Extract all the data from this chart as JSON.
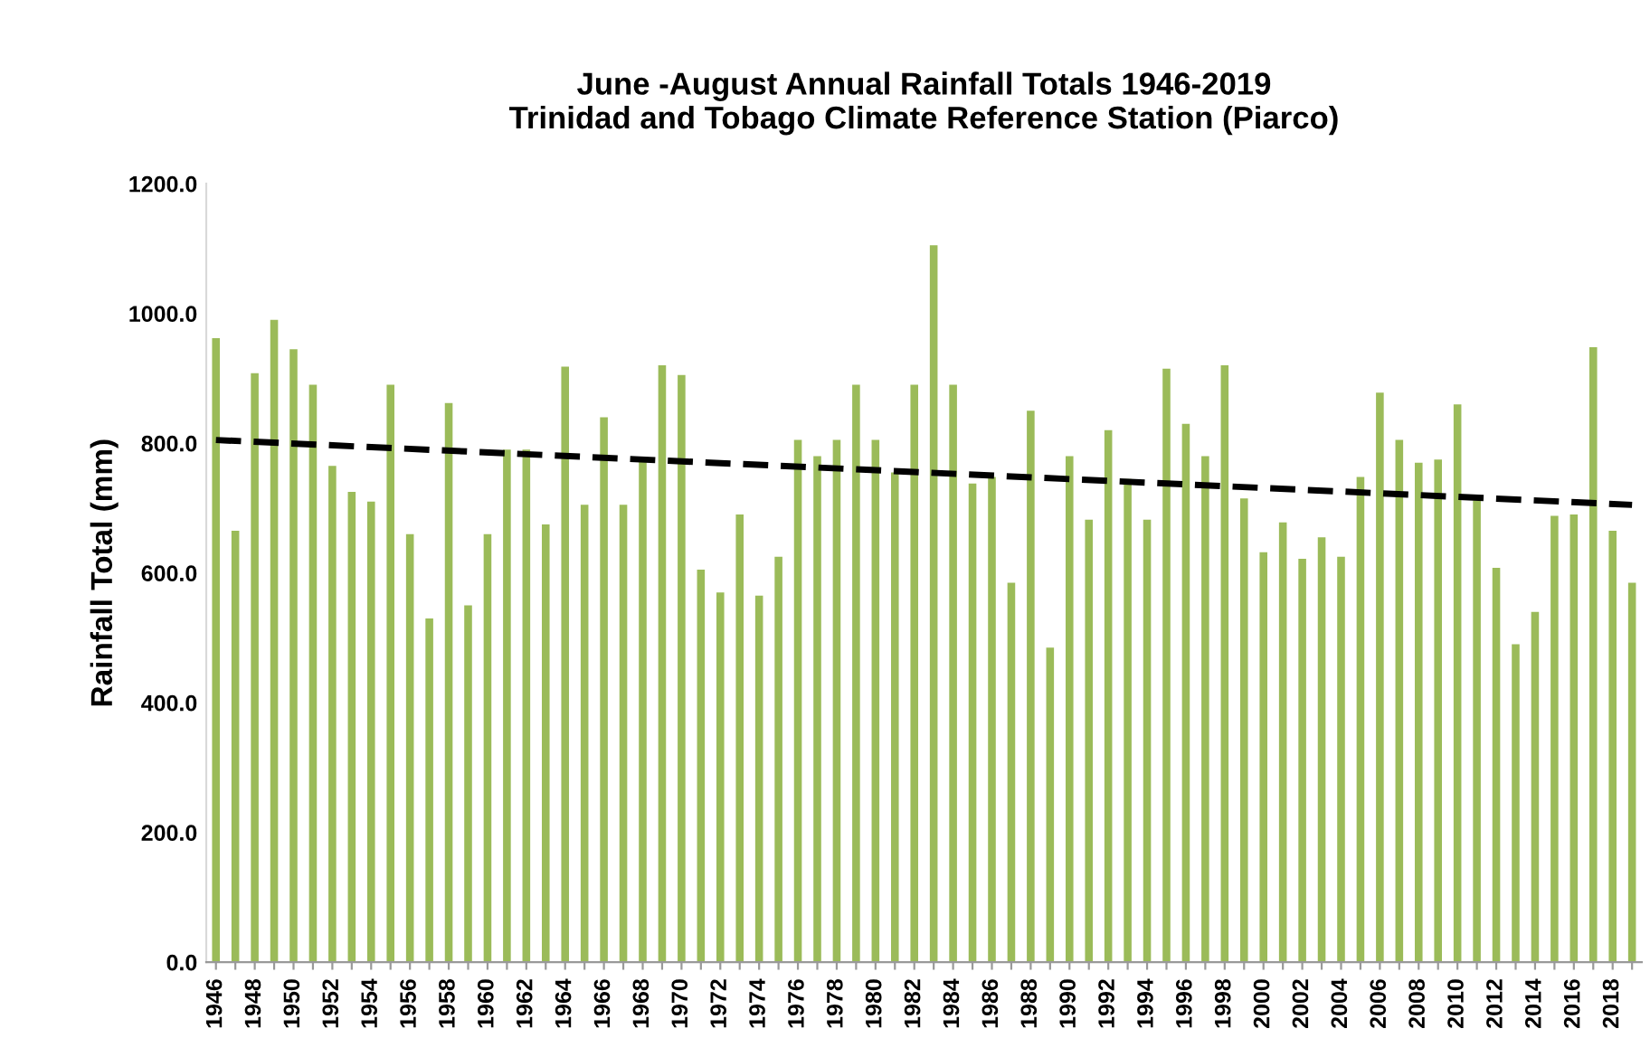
{
  "chart_data": {
    "type": "bar",
    "title": "June -August Annual Rainfall Totals 1946-2019\nTrinidad and Tobago Climate Reference Station (Piarco)",
    "ylabel": "Rainfall Total (mm)",
    "x": [
      1946,
      1947,
      1948,
      1949,
      1950,
      1951,
      1952,
      1953,
      1954,
      1955,
      1956,
      1957,
      1958,
      1959,
      1960,
      1961,
      1962,
      1963,
      1964,
      1965,
      1966,
      1967,
      1968,
      1969,
      1970,
      1971,
      1972,
      1973,
      1974,
      1975,
      1976,
      1977,
      1978,
      1979,
      1980,
      1981,
      1982,
      1983,
      1984,
      1985,
      1986,
      1987,
      1988,
      1989,
      1990,
      1991,
      1992,
      1993,
      1994,
      1995,
      1996,
      1997,
      1998,
      1999,
      2000,
      2001,
      2002,
      2003,
      2004,
      2005,
      2006,
      2007,
      2008,
      2009,
      2010,
      2011,
      2012,
      2013,
      2014,
      2015,
      2016,
      2017,
      2018,
      2019
    ],
    "series": [
      {
        "color": "#9bbb59",
        "values": [
          962,
          665,
          908,
          990,
          945,
          890,
          765,
          725,
          710,
          890,
          660,
          530,
          862,
          550,
          660,
          790,
          790,
          675,
          918,
          705,
          840,
          705,
          775,
          920,
          905,
          605,
          570,
          690,
          565,
          625,
          805,
          780,
          805,
          890,
          805,
          755,
          890,
          1105,
          890,
          738,
          748,
          585,
          850,
          485,
          780,
          682,
          820,
          745,
          682,
          915,
          830,
          780,
          920,
          715,
          632,
          678,
          622,
          655,
          625,
          748,
          878,
          805,
          770,
          775,
          860,
          712,
          608,
          490,
          540,
          688,
          690,
          948,
          665,
          585
        ]
      },
      {
        "type": "line",
        "color": "#000000",
        "line_style": "dashed",
        "x": [
          1946,
          2019
        ],
        "values": [
          805,
          705
        ]
      }
    ],
    "xlim": [
      1945.5,
      2019.5
    ],
    "xticks": [
      1946,
      {
        "value": 1947,
        "label": null
      },
      1948,
      {
        "value": 1949,
        "label": null
      },
      1950,
      {
        "value": 1951,
        "label": null
      },
      1952,
      {
        "value": 1953,
        "label": null
      },
      1954,
      {
        "value": 1955,
        "label": null
      },
      1956,
      {
        "value": 1957,
        "label": null
      },
      1958,
      {
        "value": 1959,
        "label": null
      },
      1960,
      {
        "value": 1961,
        "label": null
      },
      1962,
      {
        "value": 1963,
        "label": null
      },
      1964,
      {
        "value": 1965,
        "label": null
      },
      1966,
      {
        "value": 1967,
        "label": null
      },
      1968,
      {
        "value": 1969,
        "label": null
      },
      1970,
      {
        "value": 1971,
        "label": null
      },
      1972,
      {
        "value": 1973,
        "label": null
      },
      1974,
      {
        "value": 1975,
        "label": null
      },
      1976,
      {
        "value": 1977,
        "label": null
      },
      1978,
      {
        "value": 1979,
        "label": null
      },
      1980,
      {
        "value": 1981,
        "label": null
      },
      1982,
      {
        "value": 1983,
        "label": null
      },
      1984,
      {
        "value": 1985,
        "label": null
      },
      1986,
      {
        "value": 1987,
        "label": null
      },
      1988,
      {
        "value": 1989,
        "label": null
      },
      1990,
      {
        "value": 1991,
        "label": null
      },
      1992,
      {
        "value": 1993,
        "label": null
      },
      1994,
      {
        "value": 1995,
        "label": null
      },
      1996,
      {
        "value": 1997,
        "label": null
      },
      1998,
      {
        "value": 1999,
        "label": null
      },
      2000,
      {
        "value": 2001,
        "label": null
      },
      2002,
      {
        "value": 2003,
        "label": null
      },
      2004,
      {
        "value": 2005,
        "label": null
      },
      2006,
      {
        "value": 2007,
        "label": null
      },
      2008,
      {
        "value": 2009,
        "label": null
      },
      2010,
      {
        "value": 2011,
        "label": null
      },
      2012,
      {
        "value": 2013,
        "label": null
      },
      2014,
      {
        "value": 2015,
        "label": null
      },
      2016,
      {
        "value": 2017,
        "label": null
      },
      2018,
      {
        "value": 2019,
        "label": null
      }
    ],
    "ylim": [
      0,
      1200
    ],
    "yticks": [
      {
        "value": 0,
        "label": "0.0"
      },
      {
        "value": 200,
        "label": "200.0"
      },
      {
        "value": 400,
        "label": "400.0"
      },
      {
        "value": 600,
        "label": "600.0"
      },
      {
        "value": 800,
        "label": "800.0"
      },
      {
        "value": 1000,
        "label": "1000.0"
      },
      {
        "value": 1200,
        "label": "1200.0"
      }
    ],
    "grid": false
  }
}
